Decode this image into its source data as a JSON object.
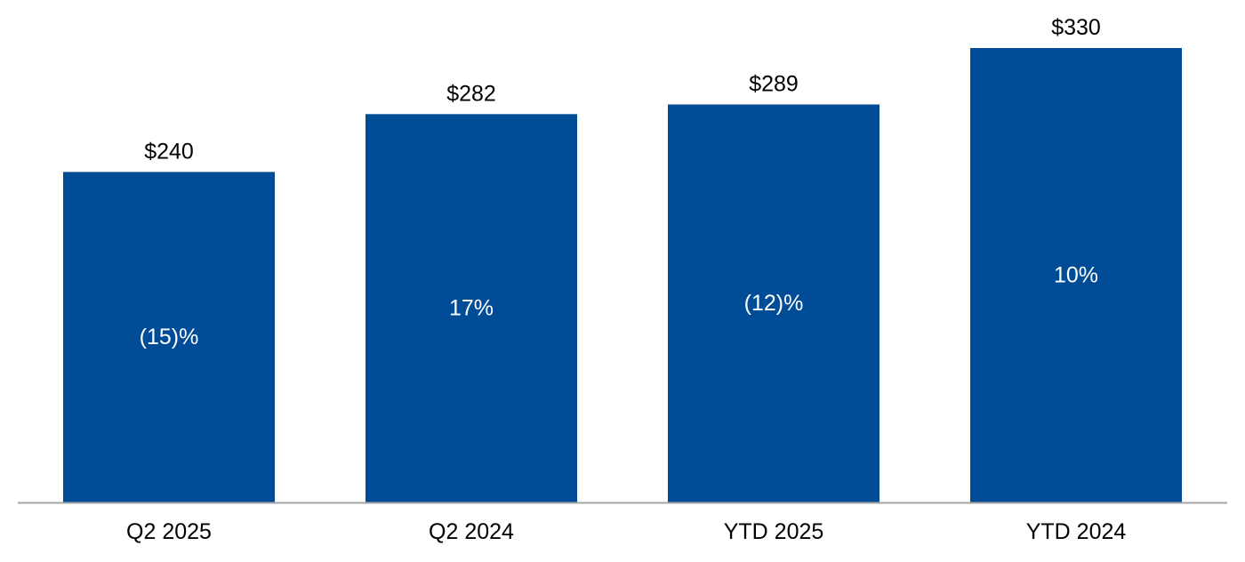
{
  "chart_data": {
    "type": "bar",
    "categories": [
      "Q2 2025",
      "Q2 2024",
      "YTD 2025",
      "YTD 2024"
    ],
    "values": [
      240,
      282,
      289,
      330
    ],
    "value_labels": [
      "$240",
      "$282",
      "$289",
      "$330"
    ],
    "change_labels": [
      "(15)%",
      "17%",
      "(12)%",
      "10%"
    ],
    "title": "",
    "xlabel": "",
    "ylabel": "",
    "ylim": [
      0,
      330
    ],
    "grid": false,
    "bar_color": "#004C97",
    "axis_color": "#A6A6A6"
  }
}
